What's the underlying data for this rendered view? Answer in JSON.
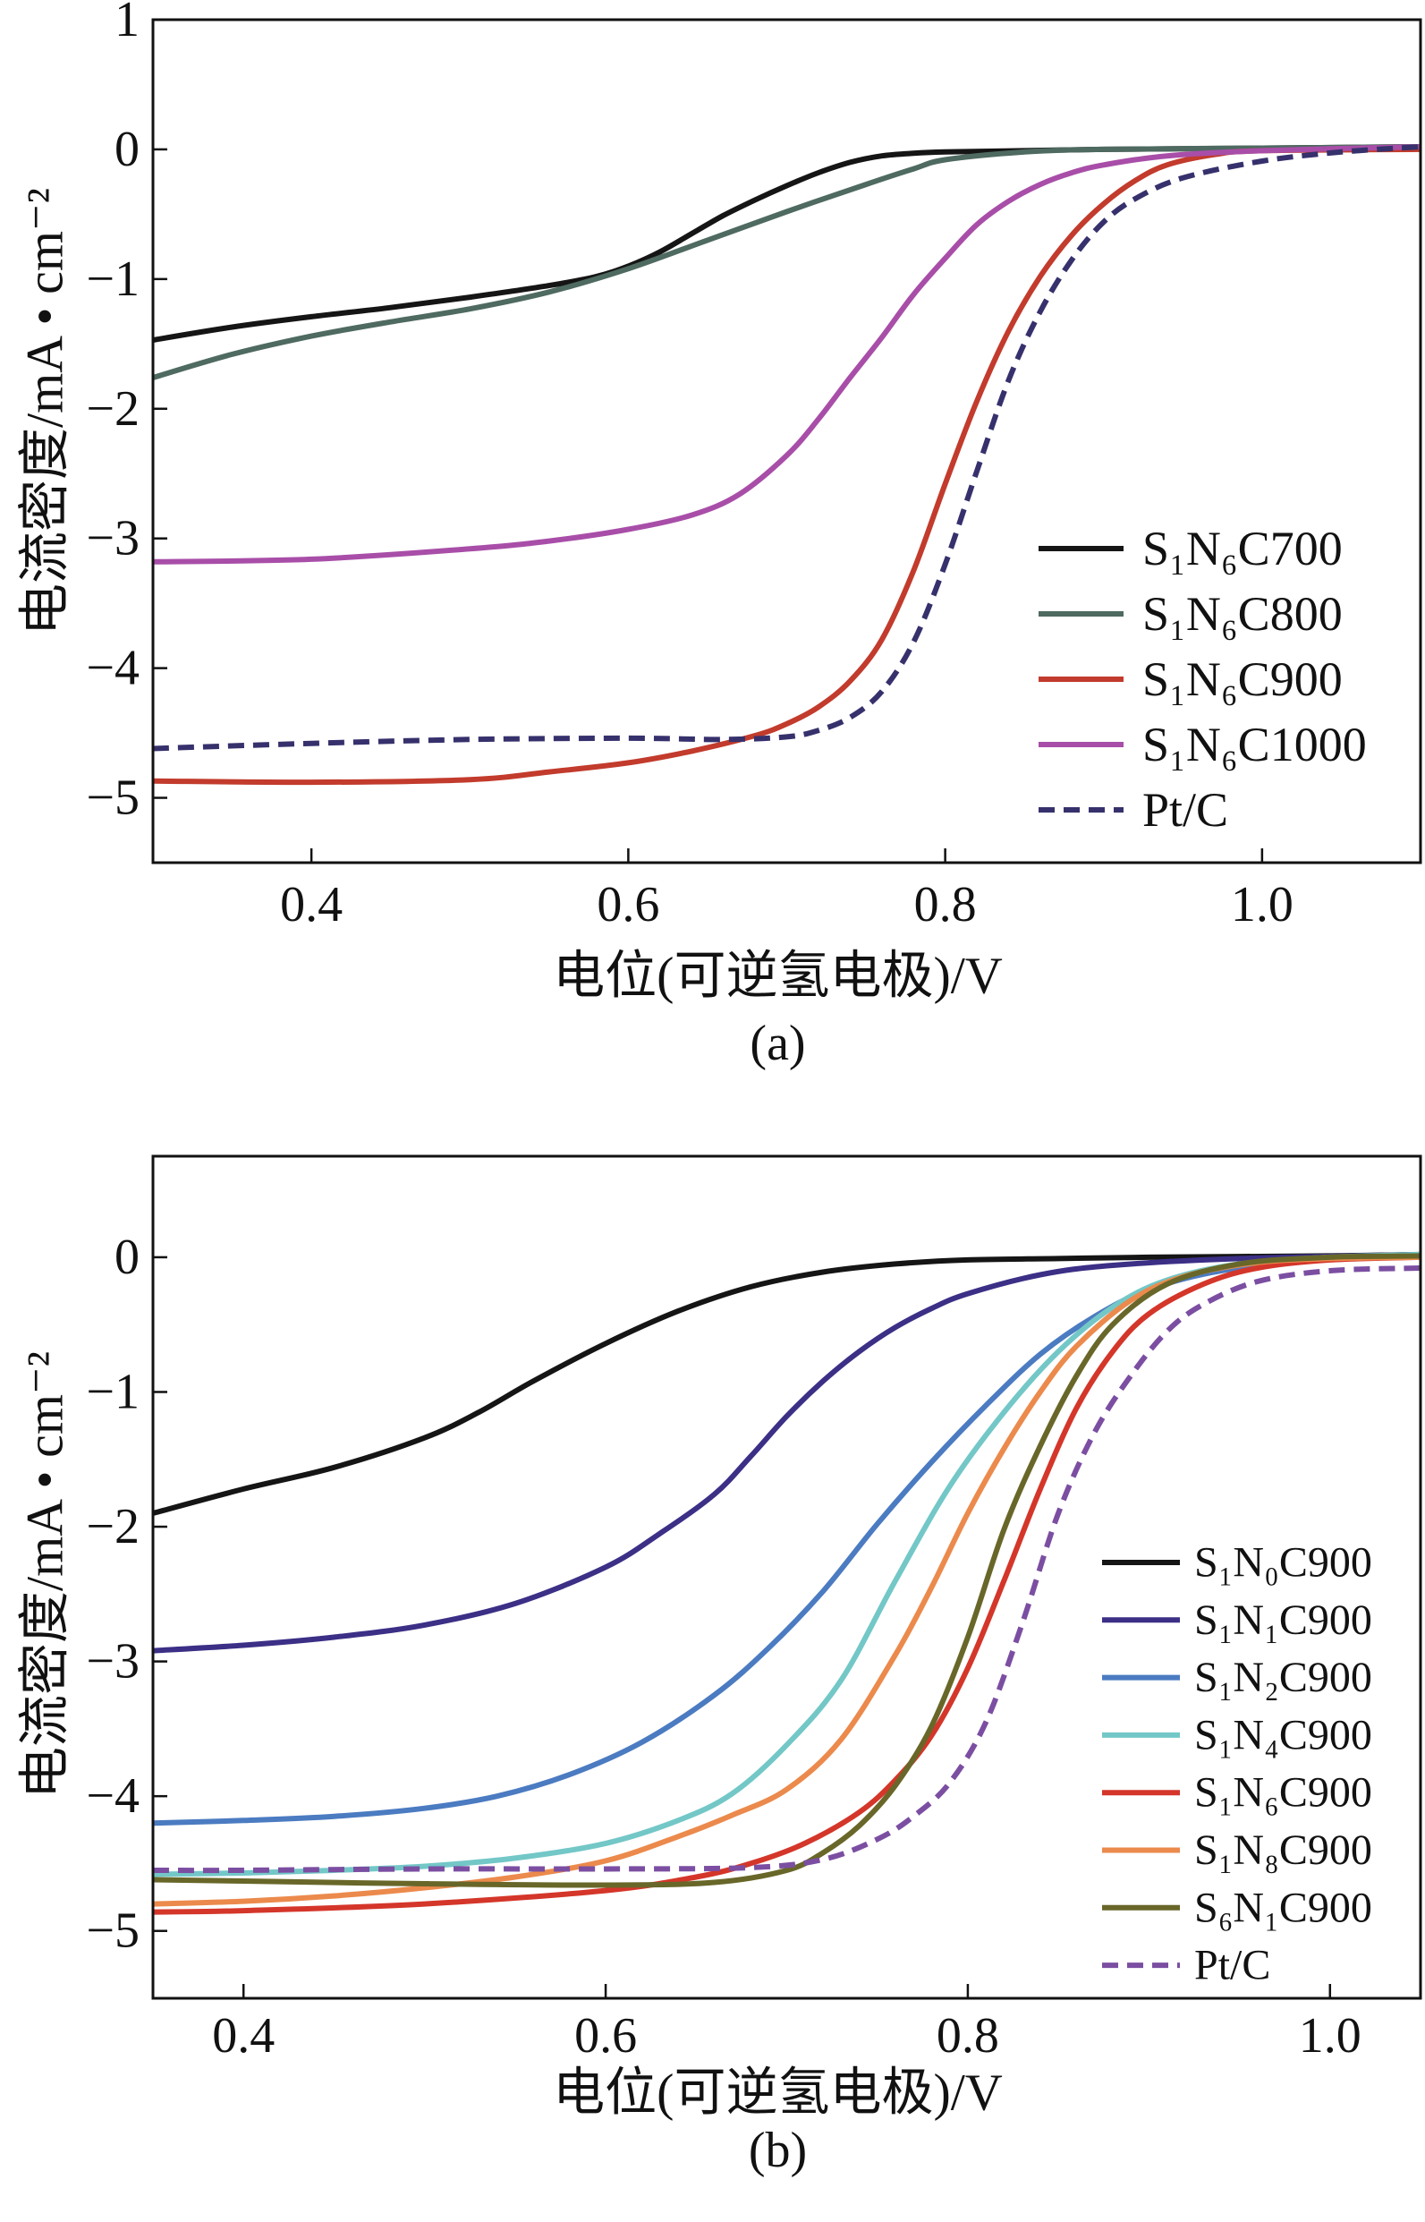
{
  "chart_data": [
    {
      "type": "line",
      "caption": "(a)",
      "xlabel": "电位(可逆氢电极)/V",
      "ylabel": "电流密度/mA • cm⁻²",
      "xlim": [
        0.3,
        1.1
      ],
      "ylim": [
        -5.5,
        1
      ],
      "xticks": [
        0.4,
        0.6,
        0.8,
        1.0
      ],
      "xticklabels": [
        "0.4",
        "0.6",
        "0.8",
        "1.0"
      ],
      "yticks": [
        1,
        0,
        -1,
        -2,
        -3,
        -4,
        -5
      ],
      "yticklabels": [
        "1",
        "0",
        "−1",
        "−2",
        "−3",
        "−4",
        "−5"
      ],
      "grid": false,
      "legend_position": "lower-right",
      "series": [
        {
          "name": "S₁N₆C700",
          "color": "#151515",
          "dashed": false,
          "x": [
            0.3,
            0.35,
            0.4,
            0.45,
            0.5,
            0.55,
            0.58,
            0.6,
            0.62,
            0.64,
            0.66,
            0.68,
            0.7,
            0.72,
            0.74,
            0.76,
            0.78,
            0.8,
            0.85,
            0.9,
            1.0,
            1.1
          ],
          "y": [
            -1.47,
            -1.37,
            -1.29,
            -1.22,
            -1.14,
            -1.05,
            -0.98,
            -0.9,
            -0.79,
            -0.65,
            -0.51,
            -0.39,
            -0.28,
            -0.18,
            -0.1,
            -0.05,
            -0.03,
            -0.02,
            -0.01,
            0.0,
            0.01,
            0.02
          ]
        },
        {
          "name": "S₁N₆C800",
          "color": "#4e6a61",
          "dashed": false,
          "x": [
            0.3,
            0.35,
            0.4,
            0.45,
            0.5,
            0.55,
            0.6,
            0.65,
            0.7,
            0.75,
            0.78,
            0.8,
            0.85,
            0.9,
            1.0,
            1.1
          ],
          "y": [
            -1.76,
            -1.58,
            -1.44,
            -1.33,
            -1.23,
            -1.1,
            -0.92,
            -0.7,
            -0.48,
            -0.27,
            -0.15,
            -0.08,
            -0.02,
            0.0,
            0.01,
            0.02
          ]
        },
        {
          "name": "S₁N₆C900",
          "color": "#c23b2c",
          "dashed": false,
          "x": [
            0.3,
            0.4,
            0.5,
            0.55,
            0.6,
            0.64,
            0.68,
            0.7,
            0.72,
            0.74,
            0.76,
            0.78,
            0.8,
            0.82,
            0.84,
            0.86,
            0.88,
            0.9,
            0.92,
            0.94,
            0.97,
            1.0,
            1.1
          ],
          "y": [
            -4.87,
            -4.88,
            -4.86,
            -4.8,
            -4.73,
            -4.64,
            -4.52,
            -4.43,
            -4.3,
            -4.1,
            -3.78,
            -3.25,
            -2.58,
            -1.94,
            -1.4,
            -0.98,
            -0.66,
            -0.42,
            -0.24,
            -0.12,
            -0.04,
            -0.01,
            0.0
          ]
        },
        {
          "name": "S₁N₆C1000",
          "color": "#a84ea8",
          "dashed": false,
          "x": [
            0.3,
            0.4,
            0.5,
            0.55,
            0.6,
            0.64,
            0.67,
            0.7,
            0.72,
            0.74,
            0.76,
            0.78,
            0.8,
            0.82,
            0.84,
            0.86,
            0.88,
            0.9,
            0.94,
            1.0,
            1.1
          ],
          "y": [
            -3.18,
            -3.16,
            -3.08,
            -3.02,
            -2.93,
            -2.82,
            -2.66,
            -2.36,
            -2.08,
            -1.76,
            -1.45,
            -1.12,
            -0.84,
            -0.58,
            -0.4,
            -0.27,
            -0.18,
            -0.12,
            -0.05,
            -0.01,
            0.02
          ]
        },
        {
          "name": "Pt/C",
          "color": "#36316c",
          "dashed": true,
          "x": [
            0.3,
            0.4,
            0.5,
            0.6,
            0.66,
            0.7,
            0.72,
            0.74,
            0.76,
            0.78,
            0.8,
            0.82,
            0.84,
            0.86,
            0.88,
            0.9,
            0.92,
            0.95,
            1.0,
            1.05,
            1.1
          ],
          "y": [
            -4.62,
            -4.58,
            -4.55,
            -4.54,
            -4.55,
            -4.53,
            -4.48,
            -4.38,
            -4.18,
            -3.8,
            -3.2,
            -2.48,
            -1.78,
            -1.25,
            -0.85,
            -0.56,
            -0.38,
            -0.22,
            -0.09,
            -0.02,
            0.02
          ]
        }
      ]
    },
    {
      "type": "line",
      "caption": "(b)",
      "xlabel": "电位(可逆氢电极)/V",
      "ylabel": "电流密度/mA • cm⁻²",
      "xlim": [
        0.35,
        1.05
      ],
      "ylim": [
        -5.5,
        0.75
      ],
      "xticks": [
        0.4,
        0.6,
        0.8,
        1.0
      ],
      "xticklabels": [
        "0.4",
        "0.6",
        "0.8",
        "1.0"
      ],
      "yticks": [
        0,
        -1,
        -2,
        -3,
        -4,
        -5
      ],
      "yticklabels": [
        "0",
        "−1",
        "−2",
        "−3",
        "−4",
        "−5"
      ],
      "grid": false,
      "legend_position": "lower-right",
      "series": [
        {
          "name": "S₁N₀C900",
          "color": "#151515",
          "dashed": false,
          "x": [
            0.35,
            0.4,
            0.45,
            0.5,
            0.53,
            0.56,
            0.6,
            0.64,
            0.68,
            0.72,
            0.76,
            0.8,
            0.85,
            0.9,
            1.0,
            1.05
          ],
          "y": [
            -1.9,
            -1.72,
            -1.56,
            -1.34,
            -1.15,
            -0.92,
            -0.64,
            -0.4,
            -0.22,
            -0.11,
            -0.05,
            -0.02,
            -0.01,
            0.0,
            0.01,
            0.02
          ]
        },
        {
          "name": "S₁N₁C900",
          "color": "#3b2f86",
          "dashed": false,
          "x": [
            0.35,
            0.4,
            0.45,
            0.5,
            0.55,
            0.6,
            0.63,
            0.66,
            0.68,
            0.7,
            0.72,
            0.74,
            0.76,
            0.78,
            0.8,
            0.84,
            0.88,
            0.95,
            1.05
          ],
          "y": [
            -2.92,
            -2.88,
            -2.82,
            -2.73,
            -2.57,
            -2.3,
            -2.05,
            -1.76,
            -1.48,
            -1.18,
            -0.92,
            -0.7,
            -0.52,
            -0.38,
            -0.27,
            -0.13,
            -0.06,
            -0.01,
            0.02
          ]
        },
        {
          "name": "S₁N₂C900",
          "color": "#4b7bc1",
          "dashed": false,
          "x": [
            0.35,
            0.4,
            0.45,
            0.5,
            0.54,
            0.58,
            0.62,
            0.66,
            0.69,
            0.72,
            0.75,
            0.78,
            0.81,
            0.84,
            0.87,
            0.9,
            0.94,
            1.0,
            1.05
          ],
          "y": [
            -4.2,
            -4.18,
            -4.15,
            -4.09,
            -4.0,
            -3.84,
            -3.6,
            -3.25,
            -2.9,
            -2.48,
            -1.98,
            -1.52,
            -1.1,
            -0.72,
            -0.44,
            -0.24,
            -0.1,
            -0.01,
            0.02
          ]
        },
        {
          "name": "S₁N₄C900",
          "color": "#73c7c7",
          "dashed": false,
          "x": [
            0.35,
            0.4,
            0.45,
            0.5,
            0.55,
            0.6,
            0.64,
            0.67,
            0.7,
            0.73,
            0.76,
            0.79,
            0.82,
            0.85,
            0.88,
            0.91,
            0.95,
            1.0,
            1.05
          ],
          "y": [
            -4.58,
            -4.57,
            -4.55,
            -4.52,
            -4.46,
            -4.35,
            -4.18,
            -3.98,
            -3.62,
            -3.14,
            -2.4,
            -1.7,
            -1.15,
            -0.7,
            -0.37,
            -0.17,
            -0.05,
            0.0,
            0.02
          ]
        },
        {
          "name": "S₁N₆C900",
          "color": "#d4362a",
          "dashed": false,
          "x": [
            0.35,
            0.4,
            0.5,
            0.6,
            0.65,
            0.68,
            0.71,
            0.74,
            0.76,
            0.78,
            0.8,
            0.82,
            0.84,
            0.86,
            0.88,
            0.9,
            0.93,
            0.96,
            1.0,
            1.05
          ],
          "y": [
            -4.86,
            -4.85,
            -4.8,
            -4.7,
            -4.6,
            -4.5,
            -4.35,
            -4.12,
            -3.88,
            -3.55,
            -3.05,
            -2.4,
            -1.72,
            -1.12,
            -0.7,
            -0.42,
            -0.2,
            -0.08,
            -0.02,
            0.0
          ]
        },
        {
          "name": "S₁N₈C900",
          "color": "#eb8a4c",
          "dashed": false,
          "x": [
            0.35,
            0.4,
            0.45,
            0.5,
            0.55,
            0.6,
            0.64,
            0.67,
            0.7,
            0.73,
            0.76,
            0.78,
            0.8,
            0.82,
            0.84,
            0.86,
            0.89,
            0.92,
            0.96,
            1.0,
            1.05
          ],
          "y": [
            -4.8,
            -4.78,
            -4.74,
            -4.68,
            -4.6,
            -4.48,
            -4.3,
            -4.14,
            -3.95,
            -3.58,
            -2.95,
            -2.45,
            -1.9,
            -1.42,
            -1.0,
            -0.66,
            -0.32,
            -0.14,
            -0.04,
            -0.01,
            0.0
          ]
        },
        {
          "name": "S₆N₁C900",
          "color": "#686729",
          "dashed": false,
          "x": [
            0.35,
            0.4,
            0.5,
            0.6,
            0.66,
            0.7,
            0.72,
            0.74,
            0.76,
            0.78,
            0.8,
            0.82,
            0.84,
            0.86,
            0.88,
            0.91,
            0.95,
            1.0,
            1.05
          ],
          "y": [
            -4.62,
            -4.63,
            -4.65,
            -4.66,
            -4.64,
            -4.55,
            -4.42,
            -4.22,
            -3.92,
            -3.48,
            -2.82,
            -2.02,
            -1.4,
            -0.88,
            -0.5,
            -0.2,
            -0.05,
            0.0,
            0.01
          ]
        },
        {
          "name": "Pt/C",
          "color": "#7b4ea2",
          "dashed": true,
          "x": [
            0.35,
            0.4,
            0.5,
            0.6,
            0.68,
            0.72,
            0.75,
            0.77,
            0.79,
            0.81,
            0.83,
            0.85,
            0.87,
            0.89,
            0.91,
            0.93,
            0.96,
            1.0,
            1.05
          ],
          "y": [
            -4.55,
            -4.55,
            -4.54,
            -4.54,
            -4.53,
            -4.47,
            -4.32,
            -4.15,
            -3.9,
            -3.45,
            -2.72,
            -1.9,
            -1.3,
            -0.88,
            -0.55,
            -0.35,
            -0.18,
            -0.1,
            -0.08
          ]
        }
      ]
    }
  ]
}
